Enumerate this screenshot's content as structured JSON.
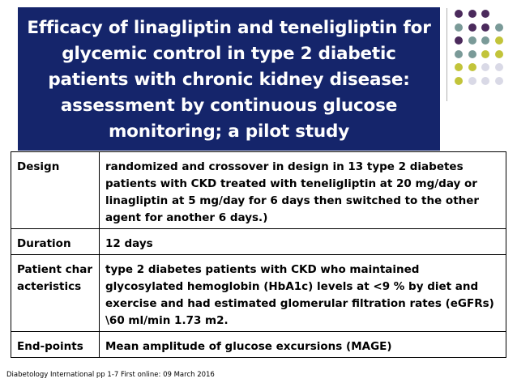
{
  "slide": {
    "title_lines": [
      "Efficacy of linagliptin and teneligliptin for",
      "glycemic control in type  2 diabetic",
      "patients with chronic kidney disease:",
      "assessment by continuous glucose",
      "monitoring; a pilot study"
    ],
    "rows": [
      {
        "label": "Design",
        "value": "randomized and crossover in design in 13 type 2 diabetes patients with CKD treated with teneligliptin at 20 mg/day or linagliptin at 5 mg/day for 6 days then switched to the other agent for another 6 days.)"
      },
      {
        "label": "Duration",
        "value": "12 days"
      },
      {
        "label": "Patient characteristics",
        "value": "type 2 diabetes patients with CKD who maintained glycosylated hemoglobin (HbA1c) levels at <9 % by diet and exercise and had estimated glomerular filtration rates (eGFRs) \\60 ml/min 1.73 m2."
      },
      {
        "label": "End-points",
        "value": "Mean amplitude of glucose excursions (MAGE)"
      }
    ],
    "footnote": "Diabetology International pp 1-7 First online: 09 March 2016"
  },
  "colors": {
    "title_background": "#15256b",
    "dot_purple": "#4b2a5c",
    "dot_teal": "#7a9a98",
    "dot_olive": "#c2c43a",
    "dot_lavender": "#d9d9e6"
  }
}
